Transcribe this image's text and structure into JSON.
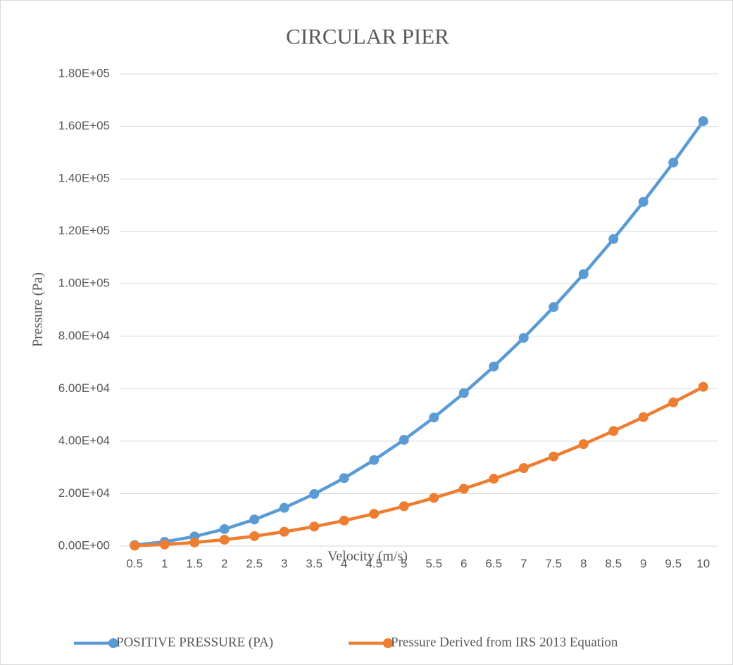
{
  "chart_data": {
    "type": "line",
    "title": "CIRCULAR PIER",
    "x_label": "Velocity (m/s)",
    "y_label": "Pressure (Pa)",
    "categories": [
      "0.5",
      "1",
      "1.5",
      "2",
      "2.5",
      "3",
      "3.5",
      "4",
      "4.5",
      "5",
      "5.5",
      "6",
      "6.5",
      "7",
      "7.5",
      "8",
      "8.5",
      "9",
      "9.5",
      "10"
    ],
    "series": [
      {
        "name": "POSITIVE PRESSURE (PA)",
        "color": "#5b9bd5",
        "values": [
          405,
          1620,
          3645,
          6480,
          10125,
          14580,
          19845,
          25920,
          32805,
          40500,
          49005,
          58320,
          68445,
          79380,
          91125,
          103680,
          117045,
          131220,
          146205,
          162000
        ]
      },
      {
        "name": "Pressure Derived from IRS 2013 Equation",
        "color": "#ed7d31",
        "values": [
          152,
          607,
          1366,
          2428,
          3794,
          5463,
          7436,
          9712,
          12292,
          15175,
          18362,
          21852,
          25646,
          29743,
          34144,
          38848,
          43856,
          49167,
          54782,
          60700
        ]
      }
    ],
    "ylim": [
      0,
      180000
    ],
    "yticks": [
      {
        "value": 0,
        "label": "0.00E+00"
      },
      {
        "value": 20000,
        "label": "2.00E+04"
      },
      {
        "value": 40000,
        "label": "4.00E+04"
      },
      {
        "value": 60000,
        "label": "6.00E+04"
      },
      {
        "value": 80000,
        "label": "8.00E+04"
      },
      {
        "value": 100000,
        "label": "1.00E+05"
      },
      {
        "value": 120000,
        "label": "1.20E+05"
      },
      {
        "value": 140000,
        "label": "1.40E+05"
      },
      {
        "value": 160000,
        "label": "1.60E+05"
      },
      {
        "value": 180000,
        "label": "1.80E+05"
      }
    ],
    "grid": true,
    "legend": "bottom"
  }
}
